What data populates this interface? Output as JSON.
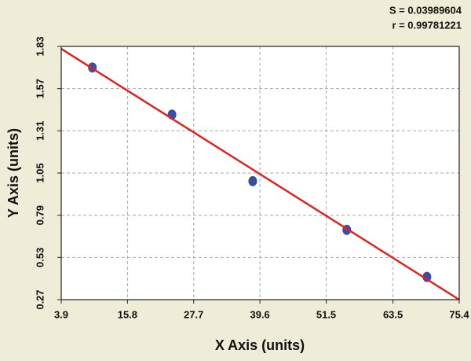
{
  "chart_data": {
    "type": "scatter",
    "annotations": [
      "S = 0.03989604",
      "r = 0.99781221"
    ],
    "x_label": "X Axis (units)",
    "y_label": "Y Axis (units)",
    "xlim": [
      3.9,
      75.4
    ],
    "xticks": [
      3.9,
      15.8,
      27.7,
      39.6,
      51.5,
      63.5,
      75.4
    ],
    "ylim": [
      0.27,
      1.83
    ],
    "yticks": [
      0.27,
      0.53,
      0.79,
      1.05,
      1.31,
      1.57,
      1.83
    ],
    "grid": true,
    "series": [
      {
        "type": "scatter",
        "color": "#3a4ea3",
        "x": [
          9.5,
          23.8,
          38.3,
          55.2,
          69.6
        ],
        "values": [
          1.7,
          1.41,
          1.0,
          0.7,
          0.41
        ]
      },
      {
        "type": "line",
        "color": "#e3211c",
        "x": [
          3.9,
          75.4
        ],
        "values": [
          1.815,
          0.27
        ]
      }
    ]
  }
}
